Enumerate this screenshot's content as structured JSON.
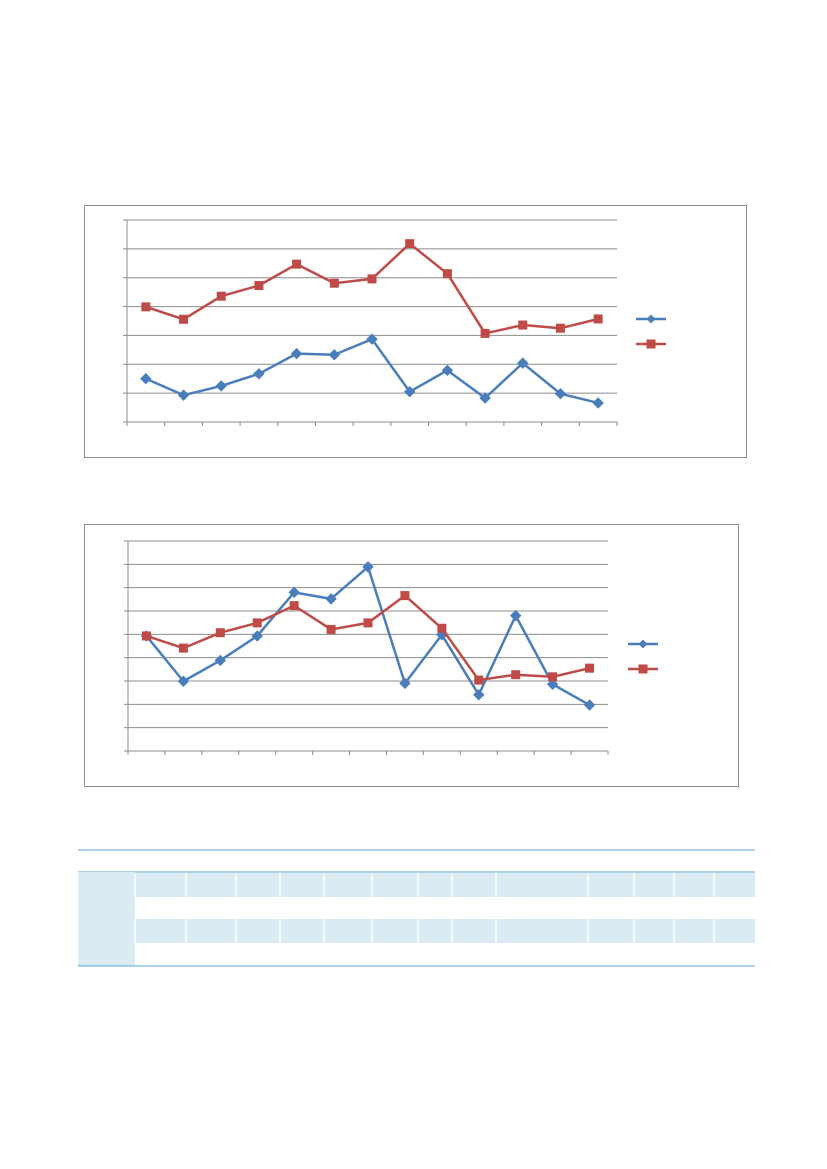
{
  "colors": {
    "series_blue": "#4a7ebb",
    "series_red": "#be4b48",
    "grid": "#8c8c8c",
    "table_band": "#daebf3",
    "table_rule": "#5aa7cd"
  },
  "chart_data": [
    {
      "type": "line",
      "title": "",
      "xlabel": "",
      "ylabel": "",
      "grid": true,
      "legend_position": "right",
      "ylim": [
        0,
        7
      ],
      "x": [
        1,
        2,
        3,
        4,
        5,
        6,
        7,
        8,
        9,
        10,
        11,
        12,
        13
      ],
      "series": [
        {
          "color": "#4a7ebb",
          "marker": "diamond",
          "values": [
            1.5,
            0.93,
            1.25,
            1.67,
            2.37,
            2.33,
            2.87,
            1.05,
            1.79,
            0.83,
            2.04,
            0.98,
            0.66
          ]
        },
        {
          "color": "#be4b48",
          "marker": "square",
          "values": [
            3.99,
            3.56,
            4.36,
            4.73,
            5.47,
            4.81,
            4.96,
            6.18,
            5.14,
            3.07,
            3.36,
            3.25,
            3.57
          ]
        }
      ]
    },
    {
      "type": "line",
      "title": "",
      "xlabel": "",
      "ylabel": "",
      "grid": true,
      "legend_position": "right",
      "ylim": [
        0,
        9
      ],
      "x": [
        1,
        2,
        3,
        4,
        5,
        6,
        7,
        8,
        9,
        10,
        11,
        12,
        13
      ],
      "series": [
        {
          "color": "#4a7ebb",
          "marker": "diamond",
          "values": [
            4.93,
            2.99,
            3.88,
            4.93,
            6.8,
            6.52,
            7.89,
            2.9,
            4.98,
            2.41,
            5.8,
            2.86,
            1.97
          ]
        },
        {
          "color": "#be4b48",
          "marker": "square",
          "values": [
            4.93,
            4.41,
            5.07,
            5.49,
            6.23,
            5.21,
            5.49,
            6.66,
            5.26,
            3.04,
            3.27,
            3.18,
            3.55
          ]
        }
      ]
    }
  ],
  "table": {
    "rows": 4,
    "cols": 14
  }
}
